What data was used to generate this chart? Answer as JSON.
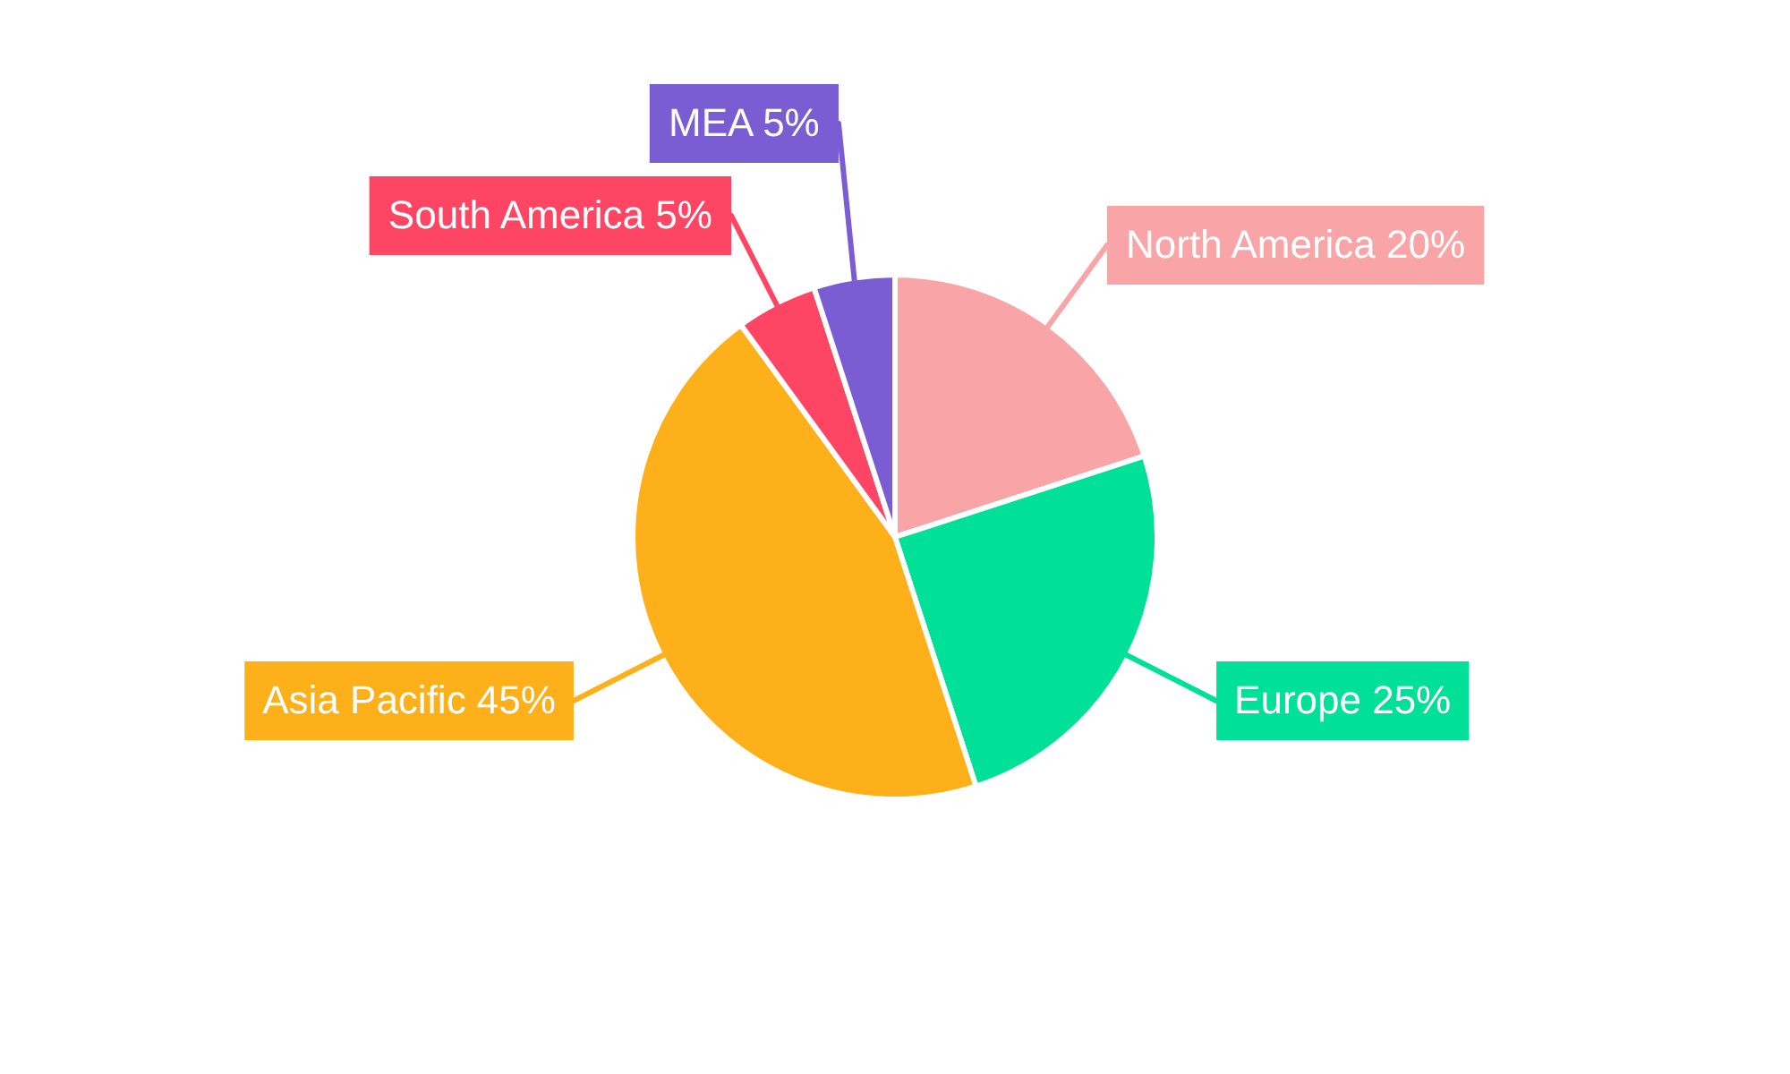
{
  "chart_data": {
    "type": "pie",
    "categories": [
      "North America",
      "Europe",
      "Asia Pacific",
      "South America",
      "MEA"
    ],
    "values": [
      20,
      25,
      45,
      5,
      5
    ],
    "value_labels": [
      "20%",
      "25%",
      "45%",
      "5%",
      "5%"
    ],
    "colors": [
      "#f9a5a7",
      "#00e096",
      "#fdb01a",
      "#ff4564",
      "#7a5cd3"
    ],
    "legend": false
  }
}
